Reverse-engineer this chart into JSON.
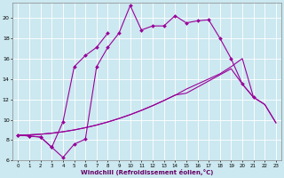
{
  "xlabel": "Windchill (Refroidissement éolien,°C)",
  "bg_color": "#cce8f0",
  "line_color": "#990099",
  "xlim": [
    -0.5,
    23.5
  ],
  "ylim": [
    6,
    21.5
  ],
  "yticks": [
    6,
    8,
    10,
    12,
    14,
    16,
    18,
    20
  ],
  "xticks": [
    0,
    1,
    2,
    3,
    4,
    5,
    6,
    7,
    8,
    9,
    10,
    11,
    12,
    13,
    14,
    15,
    16,
    17,
    18,
    19,
    20,
    21,
    22,
    23
  ],
  "jagged_x": [
    0,
    1,
    2,
    3,
    4,
    5,
    6,
    7,
    8,
    9,
    10,
    11,
    12,
    13,
    14,
    15,
    16,
    17,
    18,
    19,
    20,
    21
  ],
  "jagged_y": [
    8.5,
    8.4,
    8.3,
    7.3,
    6.3,
    7.6,
    8.1,
    15.2,
    17.1,
    18.5,
    21.2,
    18.8,
    19.2,
    19.2,
    20.2,
    19.5,
    19.7,
    19.8,
    18.0,
    16.0,
    13.5,
    12.2
  ],
  "partial_x": [
    0,
    1,
    2,
    3,
    4,
    5,
    6,
    7,
    8
  ],
  "partial_y": [
    8.5,
    8.4,
    8.3,
    7.3,
    9.8,
    15.2,
    16.3,
    17.1,
    18.5
  ],
  "smooth1_x": [
    0,
    1,
    2,
    3,
    4,
    5,
    6,
    7,
    8,
    9,
    10,
    11,
    12,
    13,
    14,
    15,
    16,
    17,
    18,
    19,
    20,
    21,
    22,
    23
  ],
  "smooth1_y": [
    8.5,
    8.52,
    8.58,
    8.68,
    8.82,
    9.0,
    9.22,
    9.48,
    9.78,
    10.12,
    10.5,
    10.92,
    11.38,
    11.88,
    12.42,
    12.6,
    13.2,
    13.8,
    14.4,
    15.0,
    13.5,
    12.2,
    11.5,
    9.7
  ],
  "smooth2_x": [
    0,
    1,
    2,
    3,
    4,
    5,
    6,
    7,
    8,
    9,
    10,
    11,
    12,
    13,
    14,
    15,
    16,
    17,
    18,
    19,
    20,
    21,
    22,
    23
  ],
  "smooth2_y": [
    8.5,
    8.52,
    8.58,
    8.68,
    8.82,
    9.0,
    9.22,
    9.48,
    9.78,
    10.12,
    10.5,
    10.92,
    11.38,
    11.88,
    12.4,
    13.0,
    13.5,
    14.0,
    14.5,
    15.2,
    16.0,
    12.2,
    11.5,
    9.7
  ]
}
